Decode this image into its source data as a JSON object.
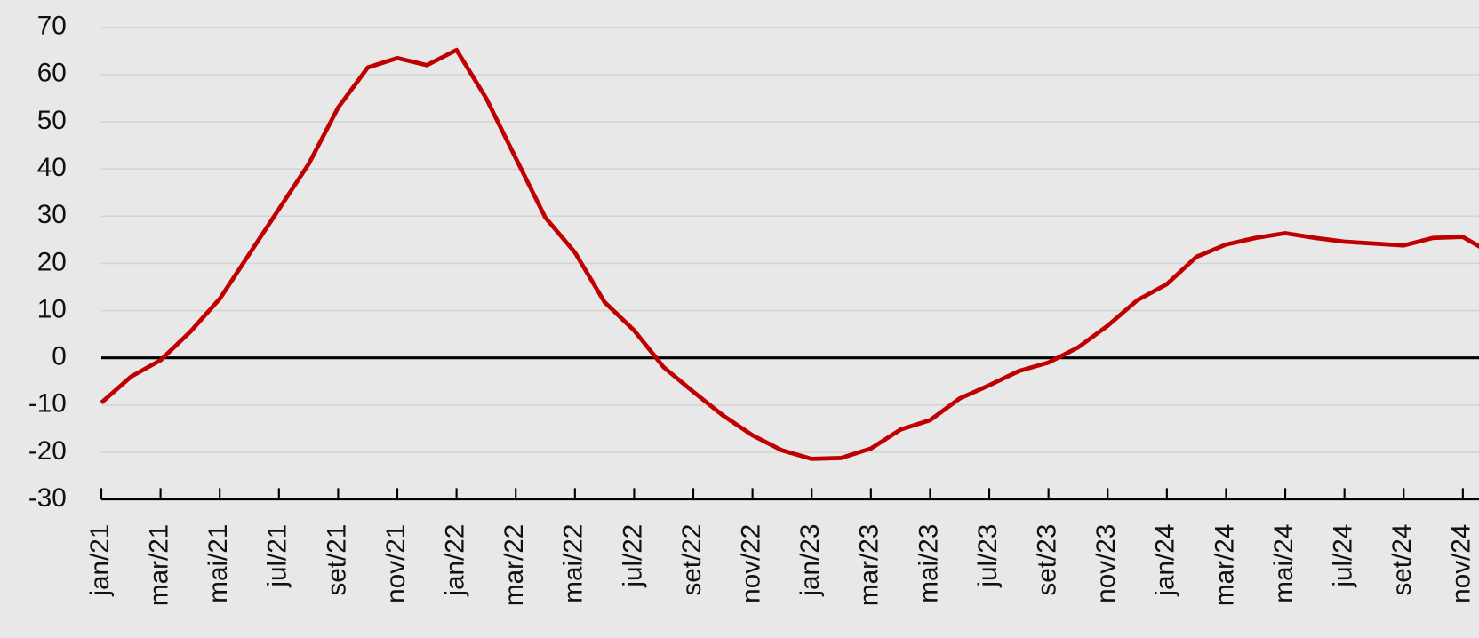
{
  "chart_data": {
    "type": "line",
    "categories": [
      "jan/21",
      null,
      "mar/21",
      null,
      "mai/21",
      null,
      "jul/21",
      null,
      "set/21",
      null,
      "nov/21",
      null,
      "jan/22",
      null,
      "mar/22",
      null,
      "mai/22",
      null,
      "jul/22",
      null,
      "set/22",
      null,
      "nov/22",
      null,
      "jan/23",
      null,
      "mar/23",
      null,
      "mai/23",
      null,
      "jul/23",
      null,
      "set/23",
      null,
      "nov/23",
      null,
      "jan/24",
      null,
      "mar/24",
      null,
      "mai/24",
      null,
      "jul/24",
      null,
      "set/24",
      null,
      "nov/24",
      null
    ],
    "values": [
      -9.5,
      -4,
      -0.5,
      5.5,
      12.5,
      22,
      31.5,
      41,
      53,
      61.5,
      63.5,
      62,
      65.2,
      55,
      42.3,
      29.7,
      22.3,
      11.8,
      5.8,
      -2,
      -7.2,
      -12.2,
      -16.4,
      -19.6,
      -21.4,
      -21.2,
      -19.2,
      -15.2,
      -13.2,
      -8.6,
      -5.8,
      -2.8,
      -1,
      2.2,
      6.8,
      12.2,
      15.6,
      21.4,
      24,
      25.4,
      26.4,
      25.4,
      24.6,
      24.2,
      23.8,
      25.4,
      25.6,
      22
    ],
    "color": "#c00000",
    "ylim": [
      -30,
      70
    ],
    "yticks": [
      -30,
      -20,
      -10,
      0,
      10,
      20,
      30,
      40,
      50,
      60,
      70
    ],
    "grid": true
  }
}
